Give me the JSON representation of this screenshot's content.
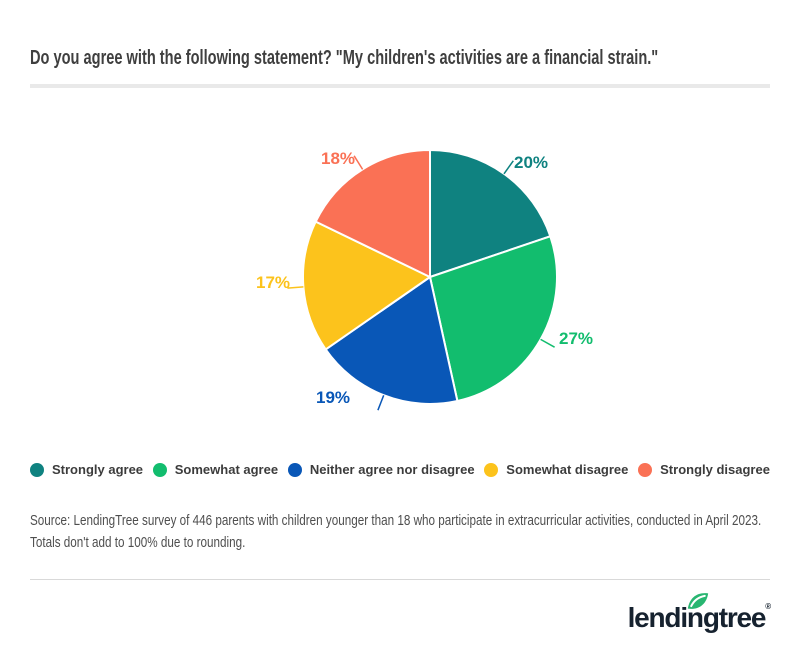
{
  "chart_data": {
    "type": "pie",
    "title": "Do you agree with the following statement? \"My children's activities are a financial strain.\"",
    "segments": [
      {
        "label": "Strongly agree",
        "value": 20,
        "color": "#0f8280"
      },
      {
        "label": "Somewhat agree",
        "value": 27,
        "color": "#12bd6e"
      },
      {
        "label": "Neither agree nor disagree",
        "value": 19,
        "color": "#0957b7"
      },
      {
        "label": "Somewhat disagree",
        "value": 17,
        "color": "#fcc31c"
      },
      {
        "label": "Strongly disagree",
        "value": 18,
        "color": "#fa7155"
      }
    ],
    "value_suffix": "%",
    "start_angle_deg": 0,
    "direction": "clockwise",
    "legend_position": "bottom"
  },
  "footer": {
    "source_text": "Source: LendingTree survey of 446 parents with children younger than 18 who participate in extracurricular activities, conducted in April 2023. Totals don't add to 100% due to rounding.",
    "logo": {
      "text": "lendingtree",
      "trademark": "®",
      "wordmark_color": "#16222f",
      "leaf_color": "#28b671"
    }
  }
}
